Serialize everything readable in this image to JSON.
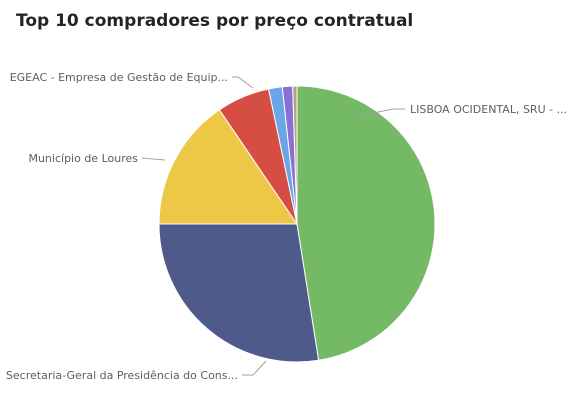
{
  "chart_data": {
    "type": "pie",
    "title": "Top 10 compradores por preço contratual",
    "slices": [
      {
        "label": "LISBOA OCIDENTAL, SRU - ...",
        "value": 47.5,
        "color": "#74b963",
        "labeled": true
      },
      {
        "label": "Secretaria-Geral da Presidência do Cons...",
        "value": 27.5,
        "color": "#4d5a8a",
        "labeled": true
      },
      {
        "label": "Município de Loures",
        "value": 15.5,
        "color": "#ecc846",
        "labeled": true
      },
      {
        "label": "EGEAC - Empresa de Gestão de Equip...",
        "value": 6.2,
        "color": "#d64d44",
        "labeled": true
      },
      {
        "label": "",
        "value": 1.6,
        "color": "#6aa6e6",
        "labeled": false
      },
      {
        "label": "",
        "value": 1.2,
        "color": "#8a6fd6",
        "labeled": false
      },
      {
        "label": "",
        "value": 0.5,
        "color": "#b8a27a",
        "labeled": false
      }
    ]
  }
}
